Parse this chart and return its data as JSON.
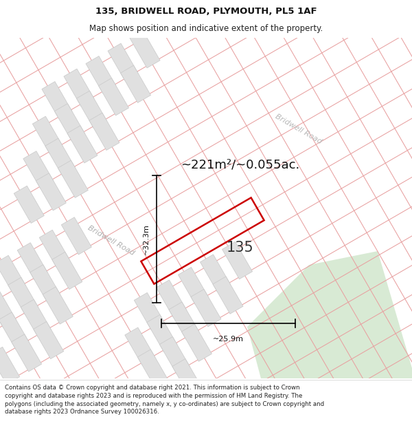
{
  "title_line1": "135, BRIDWELL ROAD, PLYMOUTH, PL5 1AF",
  "title_line2": "Map shows position and indicative extent of the property.",
  "area_text": "~221m²/~0.055ac.",
  "label_135": "135",
  "road_label": "Bridwell Road",
  "dim_vertical": "~32.3m",
  "dim_horizontal": "~25.9m",
  "footer_text": "Contains OS data © Crown copyright and database right 2021. This information is subject to Crown copyright and database rights 2023 and is reproduced with the permission of HM Land Registry. The polygons (including the associated geometry, namely x, y co-ordinates) are subject to Crown copyright and database rights 2023 Ordnance Survey 100026316.",
  "map_bg": "#efefef",
  "building_fill": "#e0e0e0",
  "building_edge": "#c8c8c8",
  "road_line_color": "#e8a0a0",
  "property_color": "#cc0000",
  "green_area": "#d8ead4",
  "title_fontsize": 9.5,
  "subtitle_fontsize": 8.5,
  "footer_fontsize": 6.2,
  "area_fontsize": 13,
  "label_fontsize": 15,
  "road_label_fontsize": 8,
  "dim_fontsize": 8
}
